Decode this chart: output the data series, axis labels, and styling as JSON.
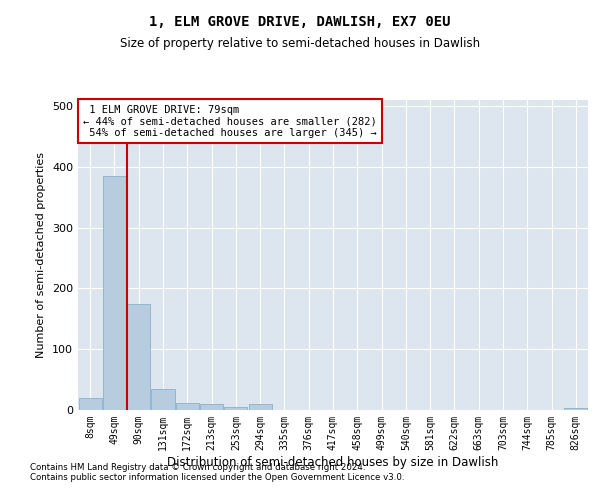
{
  "title": "1, ELM GROVE DRIVE, DAWLISH, EX7 0EU",
  "subtitle": "Size of property relative to semi-detached houses in Dawlish",
  "xlabel": "Distribution of semi-detached houses by size in Dawlish",
  "ylabel": "Number of semi-detached properties",
  "categories": [
    "8sqm",
    "49sqm",
    "90sqm",
    "131sqm",
    "172sqm",
    "213sqm",
    "253sqm",
    "294sqm",
    "335sqm",
    "376sqm",
    "417sqm",
    "458sqm",
    "499sqm",
    "540sqm",
    "581sqm",
    "622sqm",
    "663sqm",
    "703sqm",
    "744sqm",
    "785sqm",
    "826sqm"
  ],
  "values": [
    20,
    385,
    175,
    35,
    12,
    10,
    5,
    10,
    0,
    0,
    0,
    0,
    0,
    0,
    0,
    0,
    0,
    0,
    0,
    0,
    4
  ],
  "bar_color": "#b8ccdf",
  "bar_edge_color": "#7aaac8",
  "property_line_x": 1.5,
  "property_value": 79,
  "property_label": "1 ELM GROVE DRIVE: 79sqm",
  "pct_smaller": 44,
  "pct_smaller_count": 282,
  "pct_larger": 54,
  "pct_larger_count": 345,
  "ylim": [
    0,
    510
  ],
  "annotation_box_color": "#ffffff",
  "annotation_box_edge_color": "#cc0000",
  "line_color": "#cc0000",
  "bg_color": "#dde6ef",
  "footer1": "Contains HM Land Registry data © Crown copyright and database right 2024.",
  "footer2": "Contains public sector information licensed under the Open Government Licence v3.0."
}
